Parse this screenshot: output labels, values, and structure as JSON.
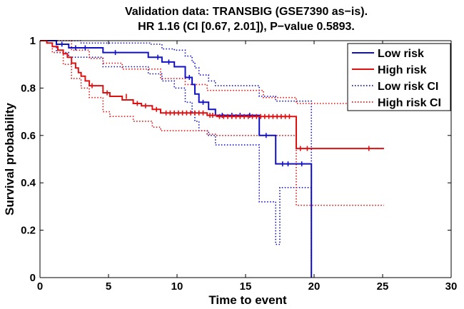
{
  "chart_data": {
    "type": "line",
    "title": "Validation data: TRANSBIG (GSE7390 as−is).",
    "subtitle": "HR 1.16 (CI [0.67, 2.01]), P−value 0.5893.",
    "xlabel": "Time to event",
    "ylabel": "Survival probability",
    "xlim": [
      0,
      30
    ],
    "ylim": [
      0,
      1
    ],
    "xticks": [
      "0",
      "5",
      "10",
      "15",
      "20",
      "25",
      "30"
    ],
    "yticks": [
      "0",
      "0.2",
      "0.4",
      "0.6",
      "0.8",
      "1"
    ],
    "legend_position": "top-right",
    "colors": {
      "low": "#1010c8",
      "high": "#e01010"
    },
    "series": [
      {
        "name": "Low risk",
        "style": "solid",
        "color": "#1010c8",
        "points": [
          [
            0,
            1
          ],
          [
            1.2,
            1
          ],
          [
            1.2,
            0.985
          ],
          [
            2.1,
            0.985
          ],
          [
            2.1,
            0.97
          ],
          [
            4.6,
            0.97
          ],
          [
            4.6,
            0.95
          ],
          [
            7.9,
            0.95
          ],
          [
            7.9,
            0.93
          ],
          [
            8.9,
            0.93
          ],
          [
            8.9,
            0.91
          ],
          [
            9.8,
            0.91
          ],
          [
            9.8,
            0.89
          ],
          [
            10.6,
            0.89
          ],
          [
            10.6,
            0.845
          ],
          [
            11.1,
            0.845
          ],
          [
            11.1,
            0.815
          ],
          [
            11.3,
            0.815
          ],
          [
            11.3,
            0.775
          ],
          [
            11.6,
            0.775
          ],
          [
            11.6,
            0.74
          ],
          [
            12.3,
            0.74
          ],
          [
            12.3,
            0.71
          ],
          [
            12.8,
            0.71
          ],
          [
            12.8,
            0.685
          ],
          [
            16,
            0.685
          ],
          [
            16,
            0.6
          ],
          [
            17.2,
            0.6
          ],
          [
            17.2,
            0.48
          ],
          [
            19.8,
            0.48
          ],
          [
            19.8,
            0
          ]
        ],
        "censors": [
          [
            1.6,
            0.985
          ],
          [
            2.6,
            0.97
          ],
          [
            3.3,
            0.97
          ],
          [
            5.5,
            0.95
          ],
          [
            8.6,
            0.93
          ],
          [
            9.4,
            0.91
          ],
          [
            10.9,
            0.845
          ],
          [
            11.9,
            0.74
          ],
          [
            13.3,
            0.685
          ],
          [
            14,
            0.685
          ],
          [
            14.6,
            0.685
          ],
          [
            15.3,
            0.685
          ],
          [
            16.5,
            0.6
          ],
          [
            17.7,
            0.48
          ],
          [
            18.1,
            0.48
          ],
          [
            19.1,
            0.48
          ]
        ]
      },
      {
        "name": "High risk",
        "style": "solid",
        "color": "#e01010",
        "points": [
          [
            0,
            1
          ],
          [
            0.5,
            1
          ],
          [
            0.5,
            0.99
          ],
          [
            0.9,
            0.99
          ],
          [
            0.9,
            0.975
          ],
          [
            1.3,
            0.975
          ],
          [
            1.3,
            0.96
          ],
          [
            1.7,
            0.96
          ],
          [
            1.7,
            0.945
          ],
          [
            2,
            0.945
          ],
          [
            2,
            0.93
          ],
          [
            2.3,
            0.93
          ],
          [
            2.3,
            0.905
          ],
          [
            2.6,
            0.905
          ],
          [
            2.6,
            0.885
          ],
          [
            2.8,
            0.885
          ],
          [
            2.8,
            0.865
          ],
          [
            3,
            0.865
          ],
          [
            3,
            0.85
          ],
          [
            3.3,
            0.85
          ],
          [
            3.3,
            0.83
          ],
          [
            3.6,
            0.83
          ],
          [
            3.6,
            0.81
          ],
          [
            4.6,
            0.81
          ],
          [
            4.6,
            0.78
          ],
          [
            5.1,
            0.78
          ],
          [
            5.1,
            0.765
          ],
          [
            6,
            0.765
          ],
          [
            6,
            0.75
          ],
          [
            6.8,
            0.75
          ],
          [
            6.8,
            0.735
          ],
          [
            7.4,
            0.735
          ],
          [
            7.4,
            0.725
          ],
          [
            8.2,
            0.725
          ],
          [
            8.2,
            0.71
          ],
          [
            8.8,
            0.71
          ],
          [
            8.8,
            0.695
          ],
          [
            12.2,
            0.695
          ],
          [
            12.2,
            0.685
          ],
          [
            12.9,
            0.685
          ],
          [
            12.9,
            0.68
          ],
          [
            18.7,
            0.68
          ],
          [
            18.7,
            0.545
          ],
          [
            25.1,
            0.545
          ]
        ],
        "censors": [
          [
            3.8,
            0.81
          ],
          [
            4.9,
            0.78
          ],
          [
            6.3,
            0.765
          ],
          [
            7.1,
            0.735
          ],
          [
            7.7,
            0.725
          ],
          [
            8.5,
            0.71
          ],
          [
            9.2,
            0.695
          ],
          [
            9.5,
            0.695
          ],
          [
            9.8,
            0.695
          ],
          [
            10.1,
            0.695
          ],
          [
            10.4,
            0.695
          ],
          [
            10.7,
            0.695
          ],
          [
            11,
            0.695
          ],
          [
            11.3,
            0.695
          ],
          [
            11.6,
            0.695
          ],
          [
            11.9,
            0.695
          ],
          [
            12.4,
            0.685
          ],
          [
            12.6,
            0.685
          ],
          [
            13.1,
            0.68
          ],
          [
            13.4,
            0.68
          ],
          [
            13.7,
            0.68
          ],
          [
            14,
            0.68
          ],
          [
            14.3,
            0.68
          ],
          [
            14.6,
            0.68
          ],
          [
            14.9,
            0.68
          ],
          [
            15.2,
            0.68
          ],
          [
            15.5,
            0.68
          ],
          [
            15.8,
            0.68
          ],
          [
            16.1,
            0.68
          ],
          [
            16.4,
            0.68
          ],
          [
            16.7,
            0.68
          ],
          [
            17,
            0.68
          ],
          [
            17.3,
            0.68
          ],
          [
            17.6,
            0.68
          ],
          [
            17.9,
            0.68
          ],
          [
            18.2,
            0.68
          ],
          [
            19,
            0.545
          ],
          [
            19.5,
            0.545
          ],
          [
            24,
            0.545
          ]
        ]
      },
      {
        "name": "Low risk CI",
        "style": "dotted",
        "color": "#1010c8",
        "bands": [
          [
            [
              0,
              1
            ],
            [
              3,
              1
            ],
            [
              3,
              0.99
            ],
            [
              8,
              0.99
            ],
            [
              8,
              0.985
            ],
            [
              8.9,
              0.985
            ],
            [
              8.9,
              0.965
            ],
            [
              9.8,
              0.965
            ],
            [
              9.8,
              0.96
            ],
            [
              10.6,
              0.96
            ],
            [
              10.6,
              0.935
            ],
            [
              11.1,
              0.935
            ],
            [
              11.1,
              0.91
            ],
            [
              11.3,
              0.91
            ],
            [
              11.3,
              0.885
            ],
            [
              11.6,
              0.885
            ],
            [
              11.6,
              0.855
            ],
            [
              12.3,
              0.855
            ],
            [
              12.3,
              0.83
            ],
            [
              12.8,
              0.83
            ],
            [
              12.8,
              0.81
            ],
            [
              16,
              0.81
            ],
            [
              16,
              0.765
            ],
            [
              17.2,
              0.765
            ],
            [
              17.2,
              0.745
            ],
            [
              19.8,
              0.745
            ],
            [
              19.8,
              0
            ]
          ],
          [
            [
              0,
              1
            ],
            [
              1.2,
              1
            ],
            [
              1.2,
              0.95
            ],
            [
              2.1,
              0.95
            ],
            [
              2.1,
              0.93
            ],
            [
              4.6,
              0.93
            ],
            [
              4.6,
              0.89
            ],
            [
              7.9,
              0.89
            ],
            [
              7.9,
              0.86
            ],
            [
              8.9,
              0.86
            ],
            [
              8.9,
              0.83
            ],
            [
              9.8,
              0.83
            ],
            [
              9.8,
              0.8
            ],
            [
              10.6,
              0.8
            ],
            [
              10.6,
              0.74
            ],
            [
              11.1,
              0.74
            ],
            [
              11.1,
              0.7
            ],
            [
              11.3,
              0.7
            ],
            [
              11.3,
              0.66
            ],
            [
              11.6,
              0.66
            ],
            [
              11.6,
              0.62
            ],
            [
              12.3,
              0.62
            ],
            [
              12.3,
              0.6
            ],
            [
              12.8,
              0.6
            ],
            [
              12.8,
              0.56
            ],
            [
              16,
              0.56
            ],
            [
              16,
              0.32
            ],
            [
              17.2,
              0.32
            ],
            [
              17.2,
              0.14
            ],
            [
              17.5,
              0.14
            ],
            [
              17.5,
              0.38
            ],
            [
              19.8,
              0.38
            ],
            [
              19.8,
              0
            ]
          ]
        ]
      },
      {
        "name": "High risk CI",
        "style": "dotted",
        "color": "#e01010",
        "bands": [
          [
            [
              0,
              1
            ],
            [
              2.3,
              1
            ],
            [
              2.3,
              0.96
            ],
            [
              3.6,
              0.96
            ],
            [
              3.6,
              0.925
            ],
            [
              4.6,
              0.925
            ],
            [
              4.6,
              0.905
            ],
            [
              6,
              0.905
            ],
            [
              6,
              0.88
            ],
            [
              8.8,
              0.88
            ],
            [
              8.8,
              0.84
            ],
            [
              10.6,
              0.84
            ],
            [
              10.6,
              0.815
            ],
            [
              12.2,
              0.815
            ],
            [
              12.2,
              0.79
            ],
            [
              16.3,
              0.79
            ],
            [
              16.3,
              0.76
            ],
            [
              18.7,
              0.76
            ],
            [
              18.7,
              0.735
            ],
            [
              25.1,
              0.735
            ]
          ],
          [
            [
              0,
              1
            ],
            [
              0.9,
              1
            ],
            [
              0.9,
              0.95
            ],
            [
              1.7,
              0.95
            ],
            [
              1.7,
              0.9
            ],
            [
              2.3,
              0.9
            ],
            [
              2.3,
              0.84
            ],
            [
              3,
              0.84
            ],
            [
              3,
              0.8
            ],
            [
              3.6,
              0.8
            ],
            [
              3.6,
              0.76
            ],
            [
              4.6,
              0.76
            ],
            [
              4.6,
              0.7
            ],
            [
              5.1,
              0.7
            ],
            [
              5.1,
              0.68
            ],
            [
              6.8,
              0.68
            ],
            [
              6.8,
              0.66
            ],
            [
              8.2,
              0.66
            ],
            [
              8.2,
              0.635
            ],
            [
              8.8,
              0.635
            ],
            [
              8.8,
              0.62
            ],
            [
              12.2,
              0.62
            ],
            [
              12.2,
              0.605
            ],
            [
              12.9,
              0.605
            ],
            [
              12.9,
              0.6
            ],
            [
              18.7,
              0.6
            ],
            [
              18.7,
              0.305
            ],
            [
              25.1,
              0.305
            ]
          ]
        ]
      }
    ]
  }
}
